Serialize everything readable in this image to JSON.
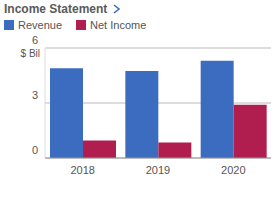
{
  "chart_data": {
    "type": "bar",
    "title": "Income Statement",
    "y_label": "$ Bil",
    "categories": [
      "2018",
      "2019",
      "2020"
    ],
    "series": [
      {
        "name": "Revenue",
        "color": "#3b6cc0",
        "values": [
          4.9,
          4.75,
          5.3
        ]
      },
      {
        "name": "Net Income",
        "color": "#b01e4f",
        "values": [
          0.95,
          0.85,
          2.9
        ]
      }
    ],
    "ylim": [
      0,
      6
    ],
    "yticks": [
      0,
      3,
      6
    ],
    "grid": true,
    "legend": "top left"
  }
}
